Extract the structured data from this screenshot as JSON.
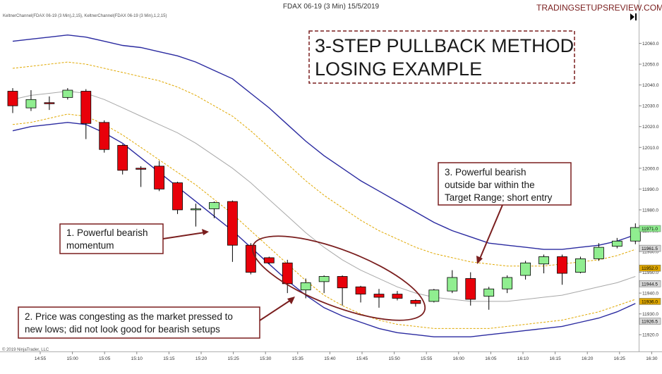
{
  "header": {
    "title": "FDAX 06-19 (3 Min)  15/5/2019",
    "website": "TRADINGSETUPSREVIEW.COM",
    "indicator_label": "KeltnerChannel(FDAX 06-19 (3 Min),2,15), KeltnerChannel(FDAX 06-19 (3 Min),1,2,15)",
    "copyright": "© 2019 NinjaTrader, LLC"
  },
  "headline": {
    "line1": "3-STEP PULLBACK METHOD",
    "line2": "LOSING EXAMPLE"
  },
  "annotations": {
    "a1": [
      "1. Powerful bearish",
      "momentum"
    ],
    "a2": [
      "2. Price was congesting as the market pressed to",
      "new lows; did not look good for bearish setups"
    ],
    "a3": [
      "3. Powerful bearish",
      "outside bar within the",
      "Target Range; short entry"
    ]
  },
  "colors": {
    "bull": "#90ee90",
    "bear": "#e8000a",
    "outer_band": "#2a2aa0",
    "inner_band": "#e0a800",
    "middle": "#a8a8a8",
    "annotation": "#7a1e1e"
  },
  "chart_data": {
    "type": "candlestick",
    "ylim": [
      11915,
      12070
    ],
    "y_ticks": [
      11920,
      11930,
      11940,
      11950,
      11960,
      11970,
      11980,
      11990,
      12000,
      12010,
      12020,
      12030,
      12040,
      12050,
      12060
    ],
    "y_tick_labels": [
      "11920.0",
      "11930.0",
      "11940.0",
      "11950.0",
      "11960.0",
      "11970.0",
      "11980.0",
      "11990.0",
      "12000.0",
      "12010.0",
      "12020.0",
      "12030.0",
      "12040.0",
      "12050.0",
      "12060.0"
    ],
    "x_tick_labels": [
      "14:55",
      "15:00",
      "15:05",
      "15:10",
      "15:15",
      "15:20",
      "15:25",
      "15:30",
      "15:35",
      "15:40",
      "15:45",
      "15:50",
      "15:55",
      "16:00",
      "16:05",
      "16:10",
      "16:15",
      "16:20",
      "16:25",
      "16:30"
    ],
    "candles": [
      {
        "o": 12037.0,
        "h": 12038.5,
        "l": 12026.5,
        "c": 12030.0
      },
      {
        "o": 12029.0,
        "h": 12037.5,
        "l": 12027.5,
        "c": 12033.0
      },
      {
        "o": 12031.5,
        "h": 12034.5,
        "l": 12028.0,
        "c": 12031.0
      },
      {
        "o": 12034.0,
        "h": 12038.5,
        "l": 12033.0,
        "c": 12037.5
      },
      {
        "o": 12037.0,
        "h": 12038.0,
        "l": 12014.0,
        "c": 12021.5
      },
      {
        "o": 12022.0,
        "h": 12023.0,
        "l": 12007.5,
        "c": 12009.0
      },
      {
        "o": 12011.0,
        "h": 12011.5,
        "l": 11997.0,
        "c": 11999.0
      },
      {
        "o": 12000.0,
        "h": 12001.0,
        "l": 11991.0,
        "c": 11999.5
      },
      {
        "o": 12001.0,
        "h": 12003.5,
        "l": 11989.0,
        "c": 11990.0
      },
      {
        "o": 11993.0,
        "h": 11993.5,
        "l": 11978.0,
        "c": 11980.0
      },
      {
        "o": 11980.0,
        "h": 11983.0,
        "l": 11972.0,
        "c": 11980.5
      },
      {
        "o": 11980.5,
        "h": 11984.0,
        "l": 11976.0,
        "c": 11983.5
      },
      {
        "o": 11984.0,
        "h": 11984.5,
        "l": 11955.0,
        "c": 11963.0
      },
      {
        "o": 11963.0,
        "h": 11964.0,
        "l": 11949.0,
        "c": 11950.0
      },
      {
        "o": 11957.0,
        "h": 11957.5,
        "l": 11954.0,
        "c": 11954.5
      },
      {
        "o": 11954.5,
        "h": 11956.0,
        "l": 11940.0,
        "c": 11944.5
      },
      {
        "o": 11941.5,
        "h": 11947.0,
        "l": 11937.5,
        "c": 11945.0
      },
      {
        "o": 11945.5,
        "h": 11948.5,
        "l": 11940.0,
        "c": 11948.0
      },
      {
        "o": 11948.0,
        "h": 11948.5,
        "l": 11934.0,
        "c": 11942.5
      },
      {
        "o": 11943.0,
        "h": 11943.5,
        "l": 11935.5,
        "c": 11939.5
      },
      {
        "o": 11939.5,
        "h": 11942.0,
        "l": 11933.0,
        "c": 11938.0
      },
      {
        "o": 11939.5,
        "h": 11941.0,
        "l": 11936.5,
        "c": 11937.5
      },
      {
        "o": 11936.5,
        "h": 11937.0,
        "l": 11933.5,
        "c": 11935.0
      },
      {
        "o": 11936.0,
        "h": 11942.0,
        "l": 11935.5,
        "c": 11941.5
      },
      {
        "o": 11941.0,
        "h": 11951.0,
        "l": 11940.0,
        "c": 11947.5
      },
      {
        "o": 11947.0,
        "h": 11950.0,
        "l": 11934.0,
        "c": 11937.0
      },
      {
        "o": 11938.5,
        "h": 11943.0,
        "l": 11932.0,
        "c": 11942.0
      },
      {
        "o": 11942.0,
        "h": 11948.5,
        "l": 11940.0,
        "c": 11947.5
      },
      {
        "o": 11948.5,
        "h": 11955.5,
        "l": 11946.5,
        "c": 11954.5
      },
      {
        "o": 11954.0,
        "h": 11958.5,
        "l": 11949.5,
        "c": 11957.5
      },
      {
        "o": 11957.5,
        "h": 11958.5,
        "l": 11944.0,
        "c": 11949.5
      },
      {
        "o": 11950.0,
        "h": 11957.5,
        "l": 11949.5,
        "c": 11956.5
      },
      {
        "o": 11956.5,
        "h": 11964.0,
        "l": 11955.5,
        "c": 11962.0
      },
      {
        "o": 11962.5,
        "h": 11966.5,
        "l": 11961.5,
        "c": 11965.0
      },
      {
        "o": 11965.0,
        "h": 11973.5,
        "l": 11963.5,
        "c": 11971.5
      }
    ],
    "outer_upper": [
      12061,
      12062,
      12063,
      12064,
      12063,
      12061,
      12059,
      12058,
      12056,
      12054,
      12051,
      12047,
      12043,
      12036,
      12029,
      12021,
      12013,
      12006,
      12000,
      11994,
      11989,
      11984,
      11979,
      11974,
      11970,
      11967,
      11964,
      11963,
      11962,
      11961,
      11961,
      11962,
      11963,
      11965,
      11968
    ],
    "inner_upper": [
      12048,
      12049,
      12050,
      12051,
      12050,
      12048,
      12046,
      12044,
      12042,
      12039,
      12035,
      12030,
      12025,
      12018,
      12010,
      12002,
      11994,
      11987,
      11981,
      11975,
      11970,
      11966,
      11962,
      11959,
      11957,
      11955,
      11954,
      11953,
      11953,
      11953,
      11954,
      11955,
      11956,
      11958,
      11961
    ],
    "middle": [
      12033,
      12035,
      12036,
      12037,
      12036,
      12033,
      12029,
      12025,
      12021,
      12017,
      12012,
      12006,
      12000,
      11993,
      11985,
      11977,
      11969,
      11962,
      11956,
      11951,
      11947,
      11943,
      11940,
      11938,
      11937,
      11936,
      11936,
      11936,
      11937,
      11938,
      11939,
      11941,
      11943,
      11945,
      11948
    ],
    "inner_lower": [
      12021,
      12022,
      12024,
      12026,
      12025,
      12021,
      12016,
      12010,
      12004,
      11998,
      11992,
      11985,
      11978,
      11970,
      11962,
      11954,
      11946,
      11939,
      11934,
      11930,
      11927,
      11925,
      11924,
      11923,
      11923,
      11923,
      11923,
      11924,
      11925,
      11926,
      11927,
      11929,
      11931,
      11934,
      11937
    ],
    "outer_lower": [
      12018,
      12020,
      12021,
      12022,
      12021,
      12017,
      12012,
      12005,
      11998,
      11991,
      11984,
      11977,
      11970,
      11962,
      11954,
      11946,
      11939,
      11933,
      11929,
      11926,
      11923,
      11921,
      11920,
      11919,
      11919,
      11919,
      11920,
      11921,
      11922,
      11923,
      11924,
      11926,
      11928,
      11931,
      11935
    ],
    "price_tags": [
      {
        "value": 11971.0,
        "label": "11971.0",
        "color": "#90ee90"
      },
      {
        "value": 11961.5,
        "label": "11961.5",
        "color": "#d8d8d8"
      },
      {
        "value": 11952.0,
        "label": "11952.0",
        "color": "#e0a800"
      },
      {
        "value": 11944.5,
        "label": "11944.5",
        "color": "#d8d8d8"
      },
      {
        "value": 11936.0,
        "label": "11936.0",
        "color": "#e0a800"
      },
      {
        "value": 11926.5,
        "label": "11926.5",
        "color": "#d8d8d8"
      }
    ]
  }
}
